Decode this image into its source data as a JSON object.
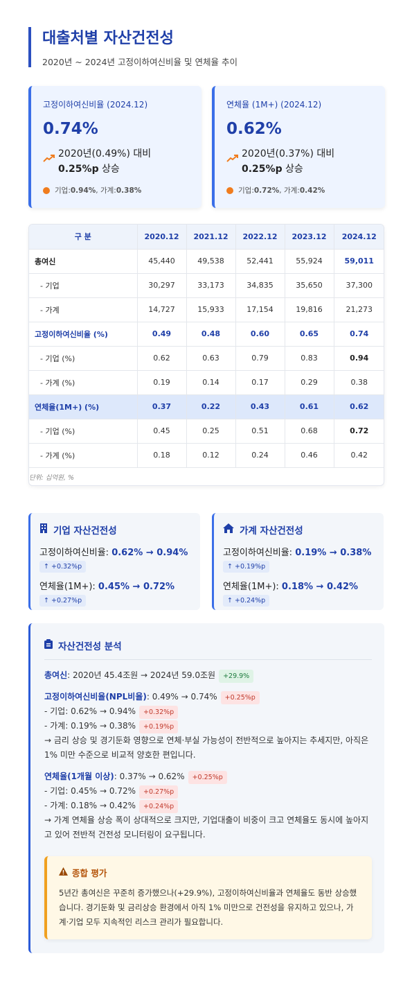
{
  "header": {
    "title": "대출처별 자산건전성",
    "subtitle": "2020년 ~ 2024년 고정이하여신비율 및 연체율 추이"
  },
  "kpis": [
    {
      "label": "고정이하여신비율 (2024.12)",
      "value": "0.74%",
      "compare_line1": "2020년(0.49%) 대비",
      "compare_line2_bold": "0.25%p",
      "compare_line2_rest": " 상승",
      "sub_prefix": "기업: ",
      "sub_corp": "0.94%",
      "sub_mid": ", 가계: ",
      "sub_house": "0.38%"
    },
    {
      "label": "연체율 (1M+) (2024.12)",
      "value": "0.62%",
      "compare_line1": "2020년(0.37%) 대비",
      "compare_line2_bold": "0.25%p",
      "compare_line2_rest": " 상승",
      "sub_prefix": "기업: ",
      "sub_corp": "0.72%",
      "sub_mid": ", 가계: ",
      "sub_house": "0.42%"
    }
  ],
  "table": {
    "headers": [
      "구 분",
      "2020.12",
      "2021.12",
      "2022.12",
      "2023.12",
      "2024.12"
    ],
    "rows": [
      {
        "label": "총여신",
        "values": [
          "45,440",
          "49,538",
          "52,441",
          "55,924",
          "59,011"
        ]
      },
      {
        "label": "- 기업",
        "values": [
          "30,297",
          "33,173",
          "34,835",
          "35,650",
          "37,300"
        ]
      },
      {
        "label": "- 가계",
        "values": [
          "14,727",
          "15,933",
          "17,154",
          "19,816",
          "21,273"
        ]
      },
      {
        "label": "고정이하여신비율 (%)",
        "values": [
          "0.49",
          "0.48",
          "0.60",
          "0.65",
          "0.74"
        ]
      },
      {
        "label": "- 기업 (%)",
        "values": [
          "0.62",
          "0.63",
          "0.79",
          "0.83",
          "0.94"
        ]
      },
      {
        "label": "- 가계 (%)",
        "values": [
          "0.19",
          "0.14",
          "0.17",
          "0.29",
          "0.38"
        ]
      },
      {
        "label": "연체율(1M+) (%)",
        "values": [
          "0.37",
          "0.22",
          "0.43",
          "0.61",
          "0.62"
        ]
      },
      {
        "label": "- 기업 (%)",
        "values": [
          "0.45",
          "0.25",
          "0.51",
          "0.68",
          "0.72"
        ]
      },
      {
        "label": "- 가계 (%)",
        "values": [
          "0.18",
          "0.12",
          "0.24",
          "0.46",
          "0.42"
        ]
      }
    ],
    "unit_note": "단위: 십억원, %"
  },
  "sectors": [
    {
      "icon": "building-icon",
      "title": "기업 자산건전성",
      "npl_label": "고정이하여신비율: ",
      "npl_value": "0.62% → 0.94%",
      "npl_change": "+0.32%p",
      "delinq_label": "연체율(1M+): ",
      "delinq_value": "0.45% → 0.72%",
      "delinq_change": "+0.27%p"
    },
    {
      "icon": "home-icon",
      "title": "가계 자산건전성",
      "npl_label": "고정이하여신비율: ",
      "npl_value": "0.19% → 0.38%",
      "npl_change": "+0.19%p",
      "delinq_label": "연체율(1M+): ",
      "delinq_value": "0.18% → 0.42%",
      "delinq_change": "+0.24%p"
    }
  ],
  "analysis": {
    "title": "자산건전성 분석",
    "total_label": "총여신",
    "total_text": ": 2020년 45.4조원 → 2024년 59.0조원",
    "total_tag": "+29.9%",
    "npl_label": "고정이하여신비율(NPL비율)",
    "npl_text": ": 0.49% → 0.74%",
    "npl_tag": "+0.25%p",
    "npl_corp": "- 기업: 0.62% → 0.94%",
    "npl_corp_tag": "+0.32%p",
    "npl_house": "- 가계: 0.19% → 0.38%",
    "npl_house_tag": "+0.19%p",
    "npl_comment": "→ 금리 상승 및 경기둔화 영향으로 연체·부실 가능성이 전반적으로 높아지는 추세지만, 아직은 1% 미만 수준으로 비교적 양호한 편입니다.",
    "del_label": "연체율(1개월 이상)",
    "del_text": ": 0.37% → 0.62%",
    "del_tag": "+0.25%p",
    "del_corp": "- 기업: 0.45% → 0.72%",
    "del_corp_tag": "+0.27%p",
    "del_house": "- 가계: 0.18% → 0.42%",
    "del_house_tag": "+0.24%p",
    "del_comment": "→ 가계 연체율 상승 폭이 상대적으로 크지만, 기업대출이 비중이 크고 연체율도 동시에 높아지고 있어 전반적 건전성 모니터링이 요구됩니다.",
    "warn_title": "종합 평가",
    "warn_text": "5년간 총여신은 꾸준히 증가했으나(+29.9%), 고정이하여신비율과 연체율도 동반 상승했습니다. 경기둔화 및 금리상승 환경에서 아직 1% 미만으로 건전성을 유지하고 있으나, 가계·기업 모두 지속적인 리스크 관리가 필요합니다."
  },
  "colors": {
    "primary": "#1f3fa8",
    "accent_orange": "#f07c1e",
    "highlight_row": "#dde8fb"
  }
}
